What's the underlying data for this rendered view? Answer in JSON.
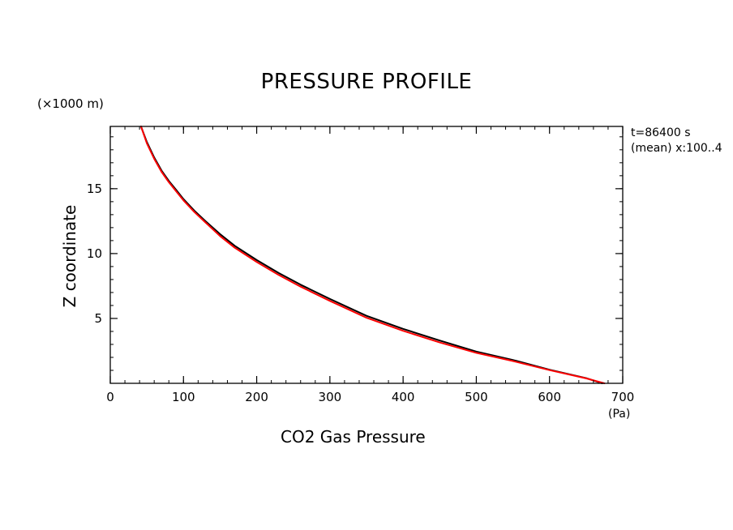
{
  "chart_data": {
    "type": "line",
    "title": "PRESSURE PROFILE",
    "xlabel": "CO2 Gas Pressure",
    "ylabel": "Z coordinate",
    "x_unit": "(Pa)",
    "y_unit": "(×1000 m)",
    "annotations": [
      "t=86400 s",
      "(mean) x:100..4"
    ],
    "xlim": [
      0,
      700
    ],
    "ylim": [
      0,
      19.8
    ],
    "x_ticks": [
      0,
      100,
      200,
      300,
      400,
      500,
      600,
      700
    ],
    "y_ticks": [
      5,
      10,
      15
    ],
    "x_minor_step": 20,
    "y_minor_step": 1,
    "grid": false,
    "series": [
      {
        "color": "#000000",
        "points": [
          [
            42,
            19.8
          ],
          [
            50,
            18.6
          ],
          [
            60,
            17.4
          ],
          [
            70,
            16.4
          ],
          [
            80,
            15.6
          ],
          [
            90,
            14.9
          ],
          [
            100,
            14.2
          ],
          [
            115,
            13.3
          ],
          [
            130,
            12.5
          ],
          [
            150,
            11.5
          ],
          [
            170,
            10.6
          ],
          [
            200,
            9.5
          ],
          [
            230,
            8.5
          ],
          [
            260,
            7.6
          ],
          [
            300,
            6.5
          ],
          [
            350,
            5.2
          ],
          [
            400,
            4.2
          ],
          [
            450,
            3.3
          ],
          [
            500,
            2.45
          ],
          [
            550,
            1.8
          ],
          [
            600,
            1.05
          ],
          [
            650,
            0.4
          ],
          [
            672,
            0.0
          ]
        ]
      },
      {
        "color": "#ff0000",
        "points": [
          [
            42,
            19.8
          ],
          [
            50,
            18.5
          ],
          [
            60,
            17.3
          ],
          [
            70,
            16.3
          ],
          [
            80,
            15.5
          ],
          [
            90,
            14.8
          ],
          [
            100,
            14.1
          ],
          [
            115,
            13.2
          ],
          [
            130,
            12.4
          ],
          [
            150,
            11.35
          ],
          [
            170,
            10.45
          ],
          [
            200,
            9.35
          ],
          [
            230,
            8.35
          ],
          [
            260,
            7.45
          ],
          [
            300,
            6.35
          ],
          [
            350,
            5.05
          ],
          [
            400,
            4.05
          ],
          [
            450,
            3.15
          ],
          [
            500,
            2.35
          ],
          [
            550,
            1.72
          ],
          [
            600,
            1.02
          ],
          [
            650,
            0.38
          ],
          [
            675,
            0.0
          ]
        ]
      }
    ]
  }
}
